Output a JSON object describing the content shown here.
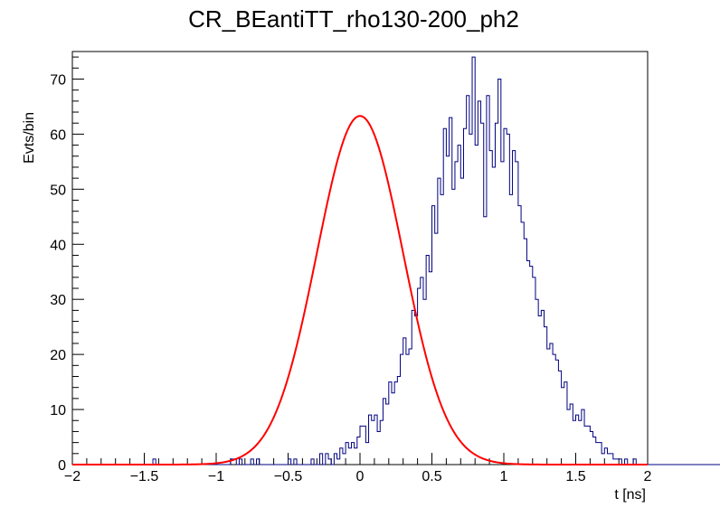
{
  "chart_data": {
    "type": "bar",
    "title": "CR_BEantiTT_rho130-200_ph2",
    "xlabel": "t [ns]",
    "ylabel": "Evts/bin",
    "xlim": [
      -2,
      2
    ],
    "ylim": [
      0,
      75
    ],
    "x_ticks": [
      -2,
      -1.5,
      -1,
      -0.5,
      0,
      0.5,
      1,
      1.5,
      2
    ],
    "x_tick_labels": [
      "−2",
      "−1.5",
      "−1",
      "−0.5",
      "0",
      "0.5",
      "1",
      "1.5",
      "2"
    ],
    "y_ticks": [
      0,
      10,
      20,
      30,
      40,
      50,
      60,
      70
    ],
    "y_tick_labels": [
      "0",
      "10",
      "20",
      "30",
      "40",
      "50",
      "60",
      "70"
    ],
    "bin_width": 0.02,
    "grid": false,
    "legend": "none",
    "colors": {
      "histogram": "#000080",
      "fit": "#ff0000"
    },
    "series": [
      {
        "type": "histogram",
        "x_start": -2,
        "values": [
          0,
          0,
          0,
          0,
          0,
          0,
          0,
          0,
          0,
          0,
          0,
          0,
          0,
          0,
          0,
          0,
          0,
          0,
          0,
          0,
          0,
          0,
          0,
          0,
          0,
          0,
          0,
          0,
          1,
          0,
          0,
          0,
          0,
          0,
          0,
          0,
          0,
          0,
          0,
          0,
          0,
          0,
          0,
          0,
          0,
          0,
          0,
          0,
          0,
          0,
          0,
          0,
          0,
          0,
          0,
          1,
          1,
          0,
          1,
          0,
          0,
          0,
          1,
          0,
          1,
          0,
          0,
          0,
          0,
          0,
          0,
          0,
          0,
          0,
          0,
          1,
          0,
          1,
          0,
          0,
          0,
          0,
          0,
          1,
          0,
          0,
          2,
          0,
          2,
          1,
          0,
          2,
          1,
          3,
          2,
          4,
          3,
          4,
          3,
          5,
          7,
          7,
          4,
          9,
          8,
          9,
          6,
          8,
          12,
          11,
          15,
          13,
          15,
          16,
          20,
          23,
          20,
          21,
          28,
          27,
          32,
          34,
          30,
          38,
          35,
          47,
          42,
          52,
          49,
          61,
          56,
          63,
          50,
          55,
          58,
          52,
          61,
          67,
          60,
          74,
          58,
          66,
          62,
          45,
          67,
          57,
          54,
          62,
          70,
          55,
          61,
          60,
          49,
          57,
          55,
          47,
          44,
          41,
          37,
          36,
          34,
          30,
          27,
          28,
          25,
          21,
          22,
          20,
          19,
          17,
          14,
          15,
          10,
          11,
          8,
          9,
          8,
          10,
          7,
          7,
          6,
          5,
          4,
          4,
          2,
          3,
          2,
          2,
          1,
          1,
          1,
          0,
          1,
          0,
          0,
          1,
          0,
          0,
          0,
          0,
          0,
          0,
          0,
          0,
          0,
          0,
          0,
          0,
          0,
          0,
          0,
          0,
          0,
          0,
          0,
          0,
          0,
          0,
          0,
          0,
          0,
          0,
          0,
          0,
          0,
          0,
          0,
          0,
          0,
          0,
          0,
          0,
          0,
          0,
          0,
          0,
          0,
          0,
          0,
          0,
          0,
          0,
          0,
          0,
          0,
          0,
          0,
          0,
          0,
          0,
          0,
          0,
          0,
          0,
          0,
          0,
          0
        ]
      },
      {
        "type": "gaussian_fit",
        "amplitude": 63.3,
        "mean": 0.0,
        "sigma": 0.3,
        "x_range": [
          -2,
          2
        ]
      }
    ]
  }
}
